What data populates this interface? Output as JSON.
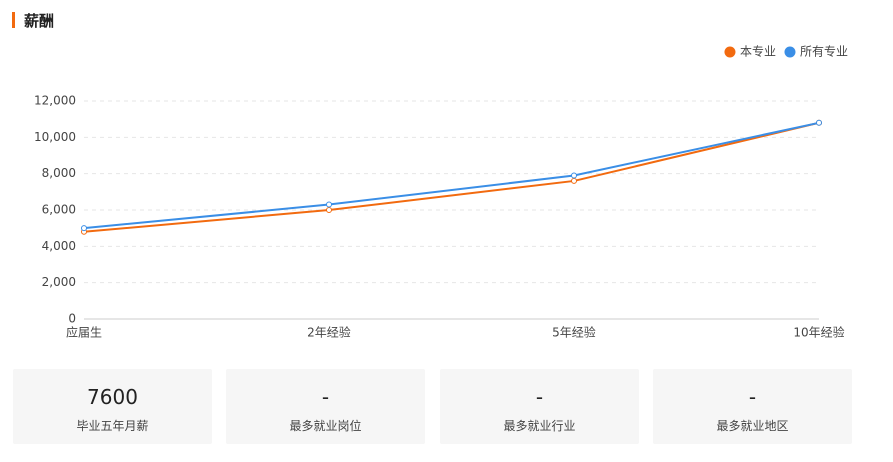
{
  "header": {
    "title": "薪酬"
  },
  "chart_data": {
    "type": "line",
    "categories": [
      "应届生",
      "2年经验",
      "5年经验",
      "10年经验"
    ],
    "series": [
      {
        "name": "本专业",
        "color": "#f26a0f",
        "values": [
          4800,
          6000,
          7600,
          10800
        ]
      },
      {
        "name": "所有专业",
        "color": "#3a8ee6",
        "values": [
          5000,
          6300,
          7900,
          10800
        ]
      }
    ],
    "ylim": [
      0,
      12000
    ],
    "yticks": [
      0,
      {
        "value": 2000,
        "label": "2,000"
      },
      {
        "value": 4000,
        "label": "4,000"
      },
      {
        "value": 6000,
        "label": "6,000"
      },
      {
        "value": 8000,
        "label": "8,000"
      },
      {
        "value": 10000,
        "label": "10,000"
      },
      {
        "value": 12000,
        "label": "12,000"
      }
    ],
    "grid": true,
    "legend": "top-right"
  },
  "cards": [
    {
      "value": 7600,
      "label": "毕业五年月薪"
    },
    {
      "value": "-",
      "label": "最多就业岗位"
    },
    {
      "value": "-",
      "label": "最多就业行业"
    },
    {
      "value": "-",
      "label": "最多就业地区"
    }
  ]
}
